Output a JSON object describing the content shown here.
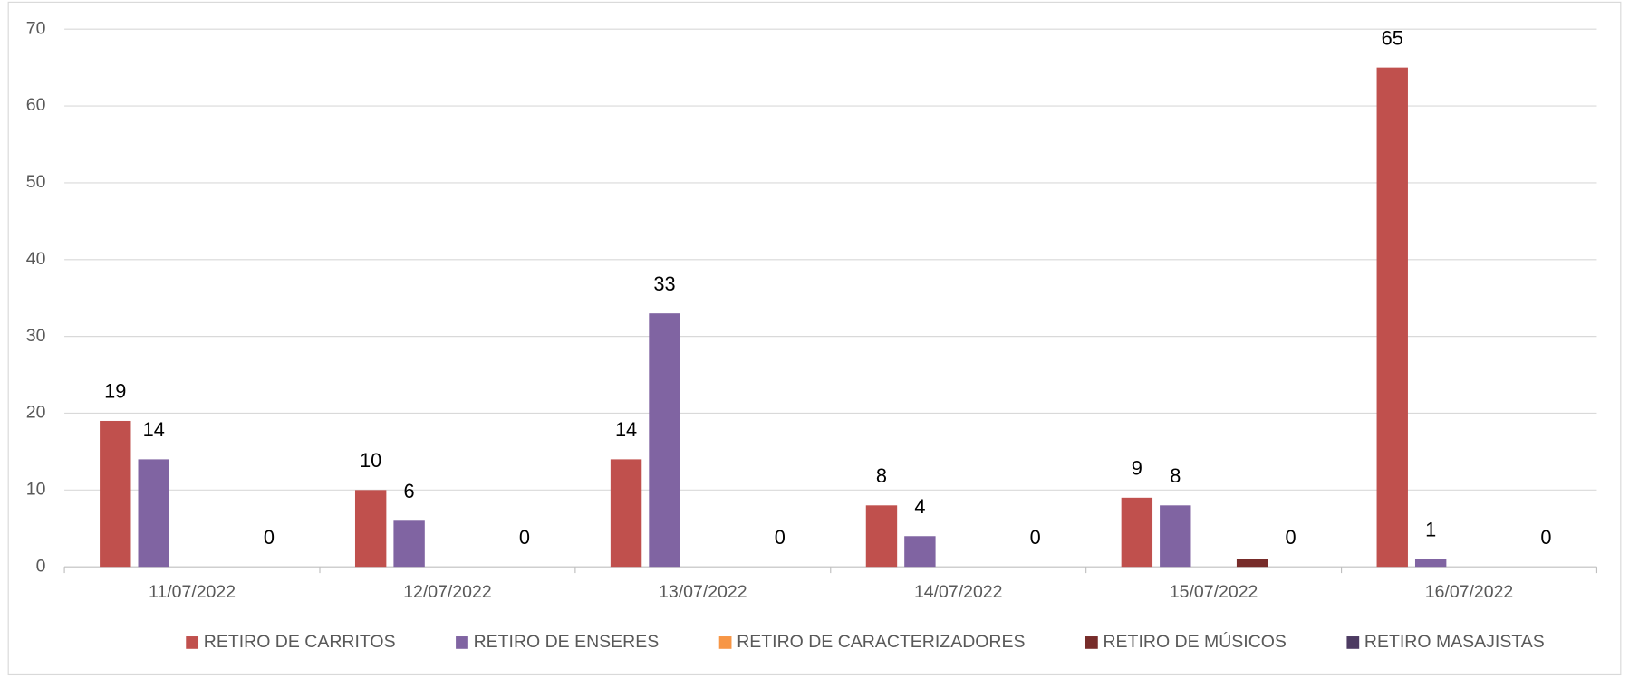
{
  "chart_data": {
    "type": "bar",
    "categories": [
      "11/07/2022",
      "12/07/2022",
      "13/07/2022",
      "14/07/2022",
      "15/07/2022",
      "16/07/2022"
    ],
    "series": [
      {
        "name": "RETIRO DE CARRITOS",
        "color": "#c0504d",
        "values": [
          19,
          10,
          14,
          8,
          9,
          65
        ],
        "show_labels": true
      },
      {
        "name": "RETIRO DE ENSERES",
        "color": "#8064a2",
        "values": [
          14,
          6,
          33,
          4,
          8,
          1
        ],
        "show_labels": true
      },
      {
        "name": "RETIRO DE CARACTERIZADORES",
        "color": "#f79646",
        "values": [
          0,
          0,
          0,
          0,
          0,
          0
        ],
        "show_labels": false
      },
      {
        "name": "RETIRO DE MÚSICOS",
        "color": "#772c2a",
        "values": [
          0,
          0,
          0,
          0,
          1,
          0
        ],
        "show_labels": false
      },
      {
        "name": "RETIRO MASAJISTAS",
        "color": "#4d3b62",
        "values": [
          0,
          0,
          0,
          0,
          0,
          0
        ],
        "show_labels": true
      }
    ],
    "ylim": [
      0,
      70
    ],
    "yticks": [
      0,
      10,
      20,
      30,
      40,
      50,
      60,
      70
    ],
    "grid": true,
    "legend": "bottom"
  }
}
